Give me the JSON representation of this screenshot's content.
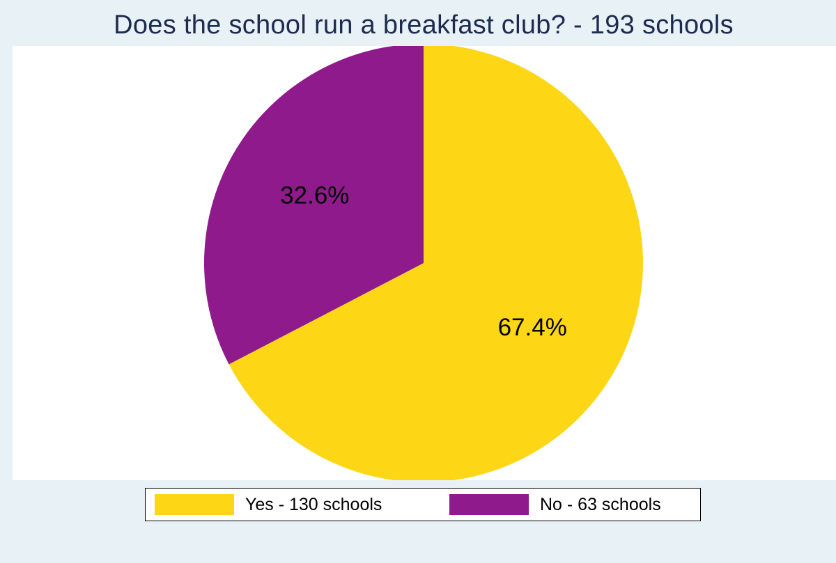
{
  "chart_data": {
    "type": "pie",
    "title": "Does the school run a breakfast club? - 193 schools",
    "slices": [
      {
        "label": "Yes - 130 schools",
        "value": 130,
        "percent_label": "67.4%",
        "color": "#fdd615"
      },
      {
        "label": "No - 63 schools",
        "value": 63,
        "percent_label": "32.6%",
        "color": "#8e1a8c"
      }
    ],
    "start_angle_deg": 0,
    "direction": "clockwise",
    "legend_position": "bottom"
  }
}
